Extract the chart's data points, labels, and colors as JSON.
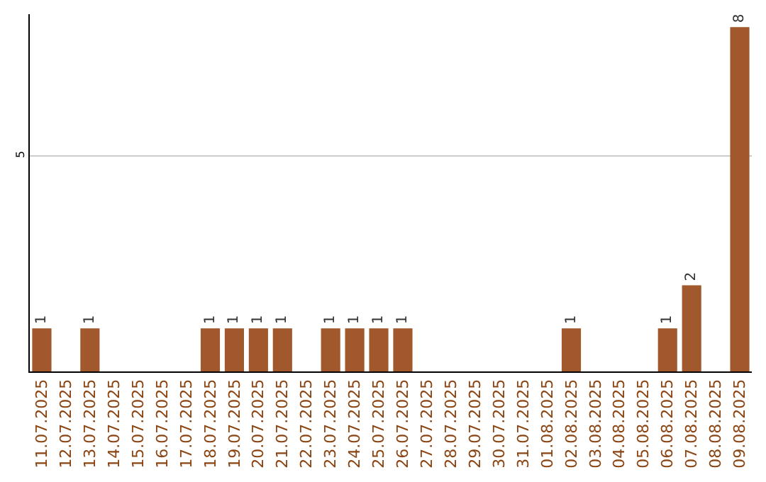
{
  "chart_data": {
    "type": "bar",
    "categories": [
      "11.07.2025",
      "12.07.2025",
      "13.07.2025",
      "14.07.2025",
      "15.07.2025",
      "16.07.2025",
      "17.07.2025",
      "18.07.2025",
      "19.07.2025",
      "20.07.2025",
      "21.07.2025",
      "22.07.2025",
      "23.07.2025",
      "24.07.2025",
      "25.07.2025",
      "26.07.2025",
      "27.07.2025",
      "28.07.2025",
      "29.07.2025",
      "30.07.2025",
      "31.07.2025",
      "01.08.2025",
      "02.08.2025",
      "03.08.2025",
      "04.08.2025",
      "05.08.2025",
      "06.08.2025",
      "07.08.2025",
      "08.08.2025",
      "09.08.2025"
    ],
    "values": [
      1,
      0,
      1,
      0,
      0,
      0,
      0,
      1,
      1,
      1,
      1,
      0,
      1,
      1,
      1,
      1,
      0,
      0,
      0,
      0,
      0,
      0,
      1,
      0,
      0,
      0,
      1,
      2,
      0,
      8
    ],
    "value_labels": [
      "1",
      null,
      "1",
      null,
      null,
      null,
      null,
      "1",
      "1",
      "1",
      "1",
      null,
      "1",
      "1",
      "1",
      "1",
      null,
      null,
      null,
      null,
      null,
      null,
      "1",
      null,
      null,
      null,
      "1",
      "2",
      null,
      "8"
    ],
    "color": "#a0582c",
    "ylim": [
      0,
      8.3
    ],
    "yticks": [
      5
    ],
    "grid": "y",
    "legend": false
  }
}
